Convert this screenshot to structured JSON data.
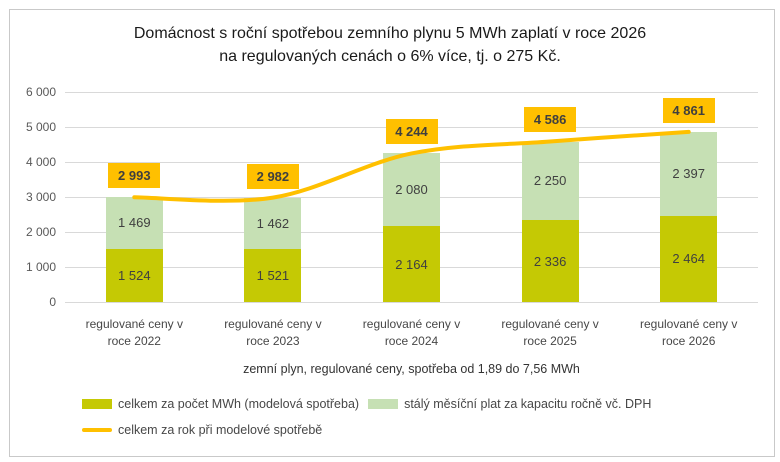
{
  "chart_data": {
    "type": "bar",
    "stacked": true,
    "title": "Domácnost s roční spotřebou zemního plynu 5 MWh zaplatí v roce 2026\nna regulovaných cenách o 6% více, tj. o 275 Kč.",
    "xlabel": "zemní plyn, regulované ceny, spotřeba od 1,89 do 7,56 MWh",
    "ylabel": "",
    "ylim": [
      0,
      6000
    ],
    "ytick_step": 1000,
    "grid": true,
    "legend_position": "bottom-left",
    "categories": [
      "regulované ceny v\nroce 2022",
      "regulované ceny v\nroce 2023",
      "regulované ceny v\nroce 2024",
      "regulované ceny v\nroce 2025",
      "regulované ceny v\nroce 2026"
    ],
    "series": [
      {
        "name": "celkem za počet MWh (modelová spotřeba)",
        "type": "bar",
        "color": "#c5c904",
        "values": [
          1524,
          1521,
          2164,
          2336,
          2464
        ]
      },
      {
        "name": "stálý měsíční plat za kapacitu ročně vč. DPH",
        "type": "bar",
        "color": "#c6e0b4",
        "values": [
          1469,
          1462,
          2080,
          2250,
          2397
        ]
      },
      {
        "name": "celkem za rok při modelové spotřebě",
        "type": "line",
        "color": "#ffc000",
        "values": [
          2993,
          2982,
          4244,
          4586,
          4861
        ]
      }
    ],
    "colors": {
      "gridline": "#d9d9d9",
      "axis_text": "#595959",
      "value_text": "#404040",
      "line_label_bg": "#ffc000"
    }
  }
}
